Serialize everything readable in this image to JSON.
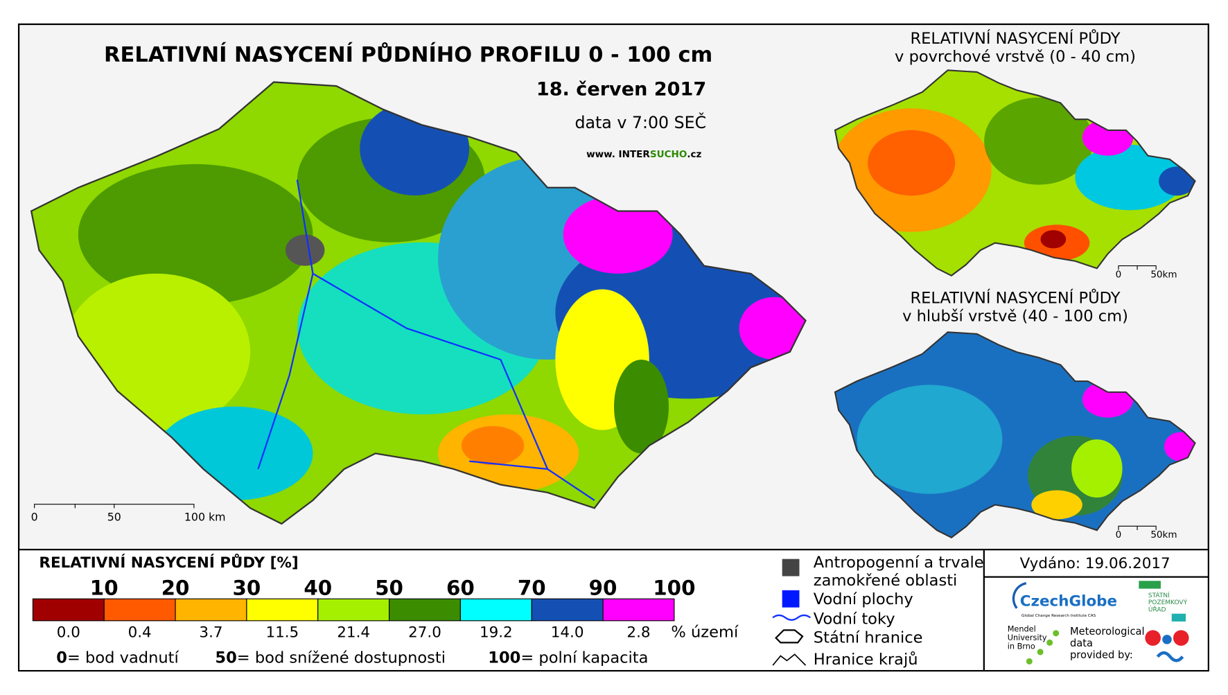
{
  "title": "RELATIVNÍ NASYCENÍ PŮDNÍHO PROFILU 0 - 100 cm",
  "date": "18. červen 2017",
  "data_time": "data v 7:00 SEČ",
  "website": {
    "prefix": "www. INTER",
    "highlight": "SUCHO",
    "suffix": ".cz"
  },
  "main_scale": [
    "0",
    "50",
    "100 km"
  ],
  "inset_top": {
    "title": "RELATIVNÍ NASYCENÍ PŮDY",
    "subtitle": "v povrchové vrstvě (0 - 40 cm)",
    "scale": [
      "0",
      "50km"
    ]
  },
  "inset_bottom": {
    "title": "RELATIVNÍ NASYCENÍ PŮDY",
    "subtitle": "v hlubší vrstvě (40 - 100 cm)",
    "scale": [
      "0",
      "50km"
    ]
  },
  "legend": {
    "title": "RELATIVNÍ NASYCENÍ PŮDY [%]",
    "share_unit": "% území",
    "classes": [
      {
        "bound": "10",
        "color": "#a00000",
        "share": "0.0"
      },
      {
        "bound": "20",
        "color": "#ff5a00",
        "share": "0.4"
      },
      {
        "bound": "30",
        "color": "#ffb400",
        "share": "3.7"
      },
      {
        "bound": "40",
        "color": "#ffff00",
        "share": "11.5"
      },
      {
        "bound": "50",
        "color": "#a5f000",
        "share": "21.4"
      },
      {
        "bound": "60",
        "color": "#3c8c00",
        "share": "27.0"
      },
      {
        "bound": "70",
        "color": "#00ffff",
        "share": "19.2"
      },
      {
        "bound": "90",
        "color": "#1450b4",
        "share": "14.0"
      },
      {
        "bound": "100",
        "color": "#ff00ff",
        "share": "2.8"
      }
    ]
  },
  "notes": [
    {
      "value": "0",
      "text": "= bod vadnutí"
    },
    {
      "value": "50",
      "text": "= bod snížené dostupnosti"
    },
    {
      "value": "100",
      "text": "= polní kapacita"
    }
  ],
  "symbols": [
    "Antropogenní a trvale",
    "zamokřené oblasti",
    "Vodní plochy",
    "Vodní toky",
    "Státní hranice",
    "Hranice krajů"
  ],
  "issued": "Vydáno: 19.06.2017",
  "logos": {
    "czechglobe": "CzechGlobe",
    "czechglobe_sub": "Global Change Research Institute CAS",
    "spu": [
      "STÁTNÍ",
      "POZEMKOVÝ",
      "ÚŘAD"
    ],
    "mendel": [
      "Mendel",
      "University",
      "in Brno"
    ],
    "met": [
      "Meteorological",
      "data",
      "provided by:"
    ]
  }
}
